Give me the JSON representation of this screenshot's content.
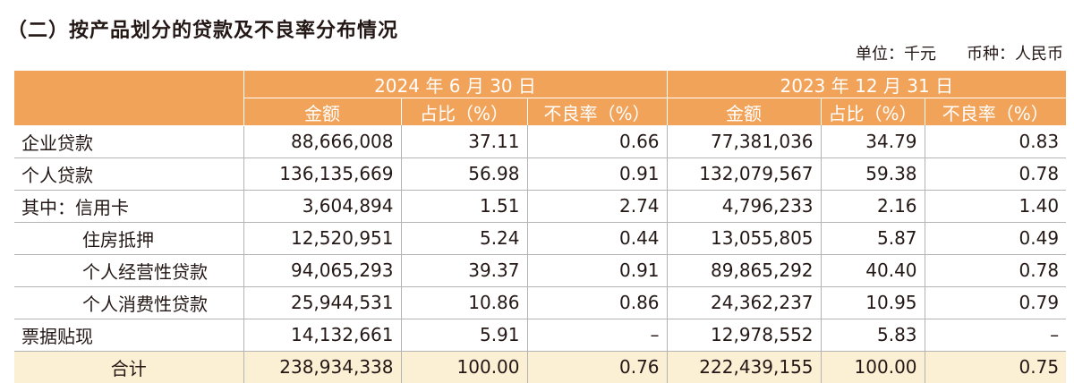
{
  "title": "（二）按产品划分的贷款及不良率分布情况",
  "unit": {
    "unit_label": "单位：千元",
    "currency_label": "币种：人民币"
  },
  "header": {
    "period1": "2024 年 6 月 30 日",
    "period2": "2023 年 12 月 31 日",
    "cols": [
      "金额",
      "占比（%）",
      "不良率（%）",
      "金额",
      "占比（%）",
      "不良率（%）"
    ]
  },
  "rows": [
    {
      "label": "企业贷款",
      "values": [
        "88,666,008",
        "37.11",
        "0.66",
        "77,381,036",
        "34.79",
        "0.83"
      ]
    },
    {
      "label": "个人贷款",
      "values": [
        "136,135,669",
        "56.98",
        "0.91",
        "132,079,567",
        "59.38",
        "0.78"
      ]
    },
    {
      "label": "其中：信用卡",
      "values": [
        "3,604,894",
        "1.51",
        "2.74",
        "4,796,233",
        "2.16",
        "1.40"
      ]
    },
    {
      "label": "住房抵押",
      "values": [
        "12,520,951",
        "5.24",
        "0.44",
        "13,055,805",
        "5.87",
        "0.49"
      ]
    },
    {
      "label": "个人经营性贷款",
      "values": [
        "94,065,293",
        "39.37",
        "0.91",
        "89,865,292",
        "40.40",
        "0.78"
      ]
    },
    {
      "label": "个人消费性贷款",
      "values": [
        "25,944,531",
        "10.86",
        "0.86",
        "24,362,237",
        "10.95",
        "0.79"
      ]
    },
    {
      "label": "票据贴现",
      "values": [
        "14,132,661",
        "5.91",
        "–",
        "12,978,552",
        "5.83",
        "–"
      ]
    },
    {
      "label": "合计",
      "values": [
        "238,934,338",
        "100.00",
        "0.76",
        "222,439,155",
        "100.00",
        "0.75"
      ]
    }
  ]
}
